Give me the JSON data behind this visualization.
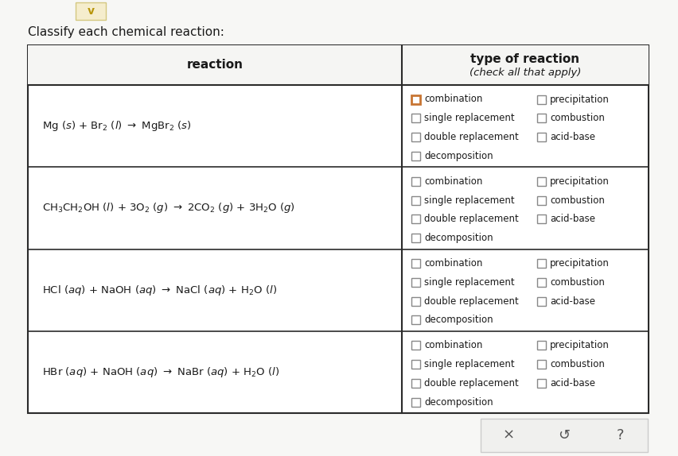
{
  "title": "Classify each chemical reaction:",
  "background_color": "#f7f7f5",
  "table_bg": "#ffffff",
  "header_bg": "#f7f7f5",
  "col1_header": "reaction",
  "col2_header": "type of reaction",
  "col2_subheader": "(check all that apply)",
  "reaction_texts": [
    "Mg $(s)$ + Br$_2$ $($l$)$ $\\rightarrow$ MgBr$_2$ $(s)$",
    "CH$_3$CH$_2$OH $(l)$ + 3O$_2$ $(g)$ $\\rightarrow$ 2CO$_2$ $(g)$ + 3H$_2$O $(g)$",
    "HCl $(aq)$ + NaOH $(aq)$ $\\rightarrow$ NaCl $(aq)$ + H$_2$O $(l)$",
    "HBr $(aq)$ + NaOH $(aq)$ $\\rightarrow$ NaBr $(aq)$ + H$_2$O $(l)$"
  ],
  "checkbox_left_labels": [
    "combination",
    "single replacement",
    "double replacement",
    "decomposition"
  ],
  "checkbox_right_labels": [
    "precipitation",
    "combustion",
    "acid-base"
  ],
  "checked": [
    {
      "combination": true,
      "single replacement": false,
      "double replacement": false,
      "decomposition": false,
      "precipitation": false,
      "combustion": false,
      "acid-base": false
    },
    {
      "combination": false,
      "single replacement": false,
      "double replacement": false,
      "decomposition": false,
      "precipitation": false,
      "combustion": false,
      "acid-base": false
    },
    {
      "combination": false,
      "single replacement": false,
      "double replacement": false,
      "decomposition": false,
      "precipitation": false,
      "combustion": false,
      "acid-base": false
    },
    {
      "combination": false,
      "single replacement": false,
      "double replacement": false,
      "decomposition": false,
      "precipitation": false,
      "combustion": false,
      "acid-base": false
    }
  ],
  "checked_color": "#c87533",
  "unchecked_color": "#888888",
  "text_color": "#1a1a1a",
  "border_color": "#2a2a2a",
  "chevron_bg": "#f5edcd",
  "chevron_color": "#b8960c",
  "button_bg": "#f0f0ee",
  "button_border": "#cccccc",
  "button_text_color": "#555555"
}
